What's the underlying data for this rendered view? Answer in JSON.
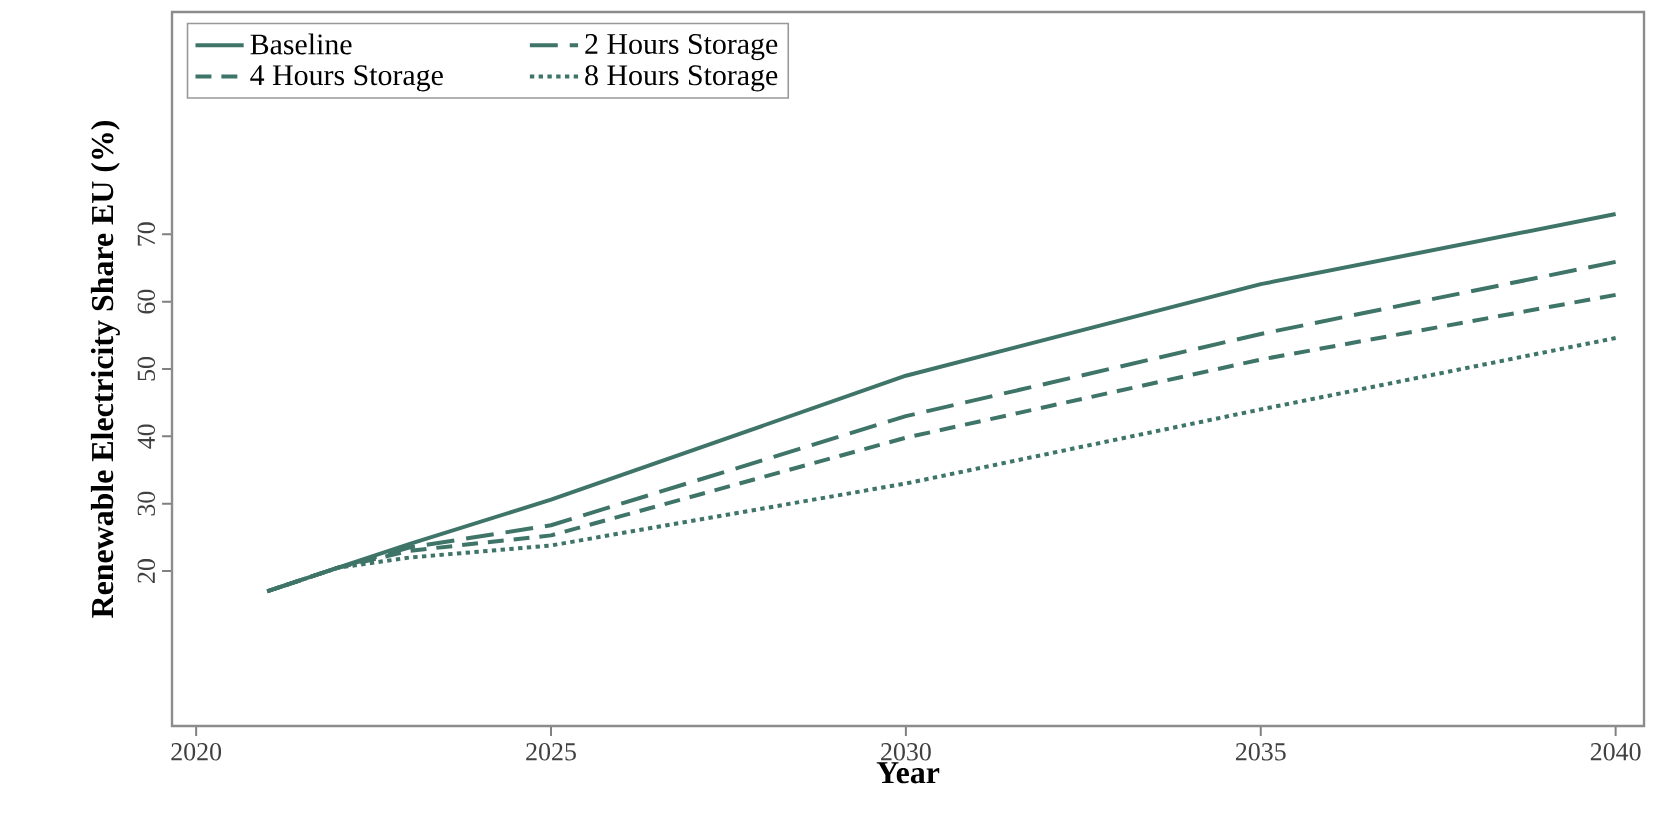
{
  "chart_data": {
    "type": "line",
    "xlabel": "Year",
    "ylabel": "Renewable Electricity Share EU (%)",
    "x": [
      2021,
      2022,
      2023,
      2025,
      2030,
      2035,
      2040
    ],
    "xlim": [
      2019.66,
      2040.4
    ],
    "xticks": [
      2020,
      2025,
      2030,
      2035,
      2040
    ],
    "ylim": [
      -3,
      103
    ],
    "yticks": [
      20,
      30,
      40,
      50,
      60,
      70
    ],
    "grid": false,
    "legend": "top left",
    "marker": "none",
    "series": [
      {
        "name": "Baseline",
        "color": "#3f7468",
        "line_style": "solid",
        "values": [
          17,
          20.5,
          24,
          30.6,
          49,
          62.6,
          73
        ]
      },
      {
        "name": "2 Hours Storage",
        "color": "#3f7468",
        "line_style": "dashed",
        "values": [
          17,
          20.5,
          23.5,
          26.8,
          43,
          55.2,
          65.9
        ]
      },
      {
        "name": "4 Hours Storage",
        "color": "#3f7468",
        "line_style": "dashed",
        "values": [
          17,
          20.5,
          23,
          25.3,
          39.8,
          51.4,
          61
        ]
      },
      {
        "name": "8 Hours Storage",
        "color": "#3f7468",
        "line_style": "dotted",
        "values": [
          17,
          20.5,
          22,
          23.8,
          33,
          44,
          54.6
        ]
      }
    ]
  }
}
